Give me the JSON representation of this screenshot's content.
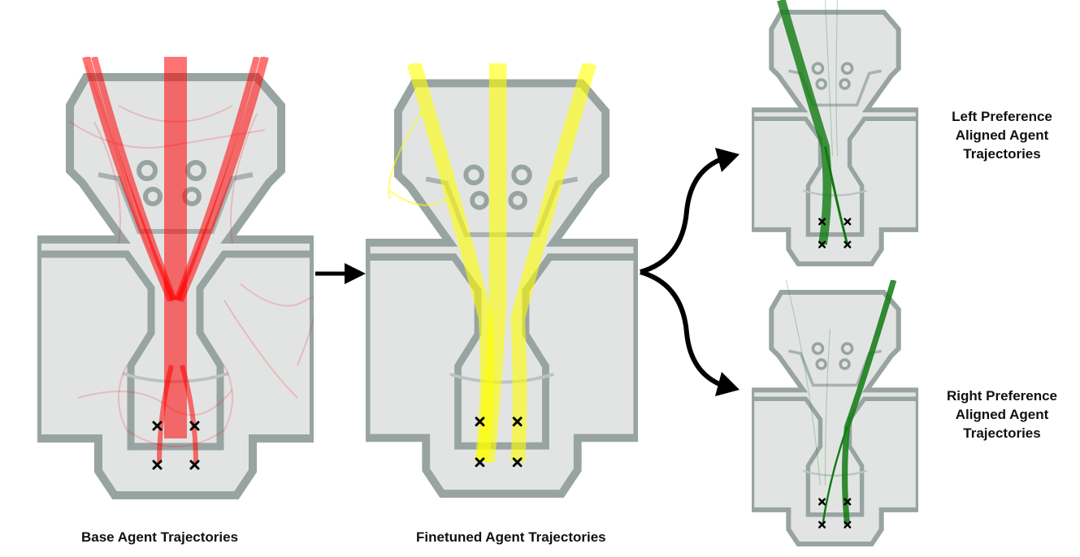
{
  "captions": {
    "base": "Base Agent Trajectories",
    "finetuned": "Finetuned Agent Trajectories"
  },
  "labels": {
    "left": [
      "Left Preference",
      "Aligned Agent",
      "Trajectories"
    ],
    "right": [
      "Right Preference",
      "Aligned Agent",
      "Trajectories"
    ]
  },
  "colors": {
    "base_trajectory": "#ff0000",
    "finetuned_trajectory": "#ffff00",
    "aligned_trajectory": "#117a11",
    "map_wall": "#9aa6a4",
    "map_floor": "#e4e6e6",
    "arrow": "#000000",
    "goal_marker": "#000000"
  }
}
